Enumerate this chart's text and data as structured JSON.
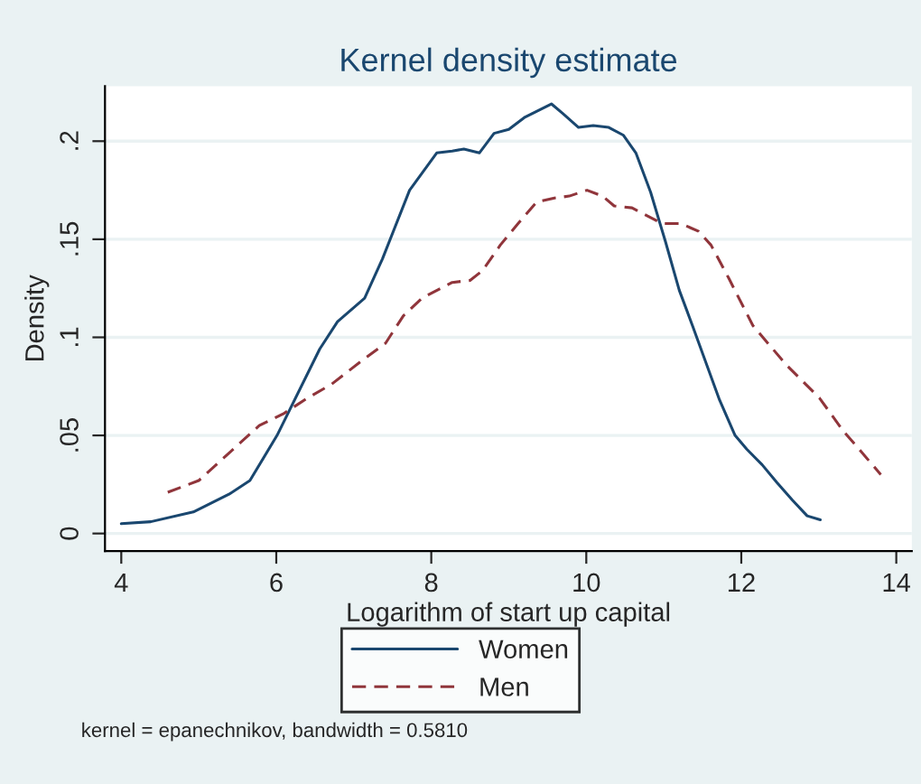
{
  "chart_data": {
    "type": "line",
    "title": "Kernel density estimate",
    "xlabel": "Logarithm of start up capital",
    "ylabel": "Density",
    "xlim": [
      3.79,
      14.2
    ],
    "xticks": [
      4,
      6,
      8,
      10,
      12,
      14
    ],
    "ylim": [
      -0.009,
      0.228
    ],
    "yticks": [
      0,
      {
        "value": 0.05,
        "label": ".05"
      },
      {
        "value": 0.1,
        "label": ".1"
      },
      {
        "value": 0.15,
        "label": ".15"
      },
      {
        "value": 0.2,
        "label": ".2"
      }
    ],
    "grid": "y",
    "legend": "bottom",
    "marker": "none",
    "annotations": [
      "kernel = epanechnikov, bandwidth = 0.5810"
    ],
    "series": [
      {
        "name": "Women",
        "color": "#1a476f",
        "line_style": "solid",
        "x": [
          4.0,
          4.38,
          4.93,
          5.39,
          5.66,
          6.01,
          6.56,
          6.79,
          7.14,
          7.37,
          7.72,
          8.07,
          8.27,
          8.42,
          8.62,
          8.81,
          9.0,
          9.2,
          9.55,
          9.7,
          9.9,
          10.09,
          10.29,
          10.48,
          10.64,
          10.83,
          11.02,
          11.2,
          11.37,
          11.72,
          11.92,
          12.07,
          12.27,
          12.46,
          12.66,
          12.85,
          13.02
        ],
        "values": [
          0.005,
          0.006,
          0.011,
          0.02,
          0.027,
          0.05,
          0.094,
          0.108,
          0.12,
          0.14,
          0.175,
          0.194,
          0.195,
          0.196,
          0.194,
          0.204,
          0.206,
          0.212,
          0.219,
          0.214,
          0.207,
          0.208,
          0.207,
          0.203,
          0.194,
          0.174,
          0.149,
          0.124,
          0.106,
          0.068,
          0.05,
          0.043,
          0.035,
          0.026,
          0.017,
          0.009,
          0.007
        ]
      },
      {
        "name": "Men",
        "color": "#90353b",
        "line_style": "dashed",
        "x": [
          4.6,
          5.0,
          5.39,
          5.78,
          6.09,
          6.4,
          6.71,
          7.1,
          7.41,
          7.64,
          7.88,
          8.27,
          8.5,
          8.66,
          8.89,
          9.12,
          9.36,
          9.59,
          9.78,
          10.01,
          10.21,
          10.36,
          10.59,
          10.98,
          11.22,
          11.45,
          11.61,
          11.84,
          12.15,
          12.58,
          13.01,
          13.32,
          13.52,
          13.8
        ],
        "values": [
          0.021,
          0.027,
          0.041,
          0.055,
          0.061,
          0.069,
          0.076,
          0.088,
          0.097,
          0.111,
          0.12,
          0.128,
          0.129,
          0.134,
          0.147,
          0.158,
          0.169,
          0.171,
          0.172,
          0.175,
          0.172,
          0.167,
          0.166,
          0.158,
          0.158,
          0.154,
          0.147,
          0.13,
          0.106,
          0.086,
          0.069,
          0.052,
          0.043,
          0.03
        ]
      }
    ]
  }
}
